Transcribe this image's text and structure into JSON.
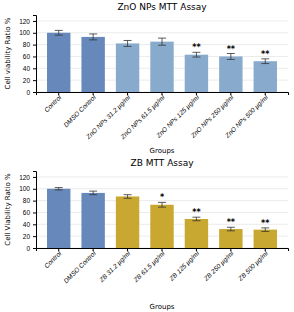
{
  "chart_data": [
    {
      "type": "bar",
      "title": "ZnO  NPs MTT Assay",
      "xlabel": "Groups",
      "ylabel": "Cell viability Ratio %",
      "categories": [
        "Control",
        "DMSO Control",
        "ZnO NPs 31.2 µg/ml",
        "ZnO NPs 61.5 µg/ml",
        "ZnO NPs 125 µg/ml",
        "ZnO NPs 250 µg/ml",
        "ZnO NPs 500 µg/ml"
      ],
      "values": [
        100,
        93,
        82,
        85,
        63,
        60,
        52
      ],
      "errors": [
        4,
        5,
        5,
        6,
        4,
        5,
        4
      ],
      "colors": [
        "#6688bb",
        "#6688bb",
        "#88aacc",
        "#88aacc",
        "#88aacc",
        "#88aacc",
        "#88aacc"
      ],
      "annotations": [
        {
          "category": "ZnO NPs 125 µg/ml",
          "text": "**"
        },
        {
          "category": "ZnO NPs 250 µg/ml",
          "text": "**"
        },
        {
          "category": "ZnO NPs 500 µg/ml",
          "text": "**"
        }
      ],
      "ylim": [
        0,
        130
      ],
      "yticks": [
        0,
        20,
        40,
        60,
        80,
        100,
        120
      ],
      "grid": true
    },
    {
      "type": "bar",
      "title": "ZB  MTT Assay",
      "xlabel": "Groups",
      "ylabel": "Cell Viability Ratio %",
      "categories": [
        "Control",
        "DMSO Control",
        "ZB 31.2 µg/ml",
        "ZB 61.5 µg/ml",
        "ZB 125 µg/ml",
        "ZB 250 µg/ml",
        "ZB 500 µg/ml"
      ],
      "values": [
        100,
        93,
        87,
        73,
        49,
        32,
        31
      ],
      "errors": [
        2,
        3,
        3,
        4,
        3,
        3,
        3
      ],
      "colors": [
        "#6688bb",
        "#6688bb",
        "#c8a830",
        "#c8a830",
        "#c8a830",
        "#c8a830",
        "#c8a830"
      ],
      "annotations": [
        {
          "category": "ZB 61.5 µg/ml",
          "text": "*"
        },
        {
          "category": "ZB 125 µg/ml",
          "text": "**"
        },
        {
          "category": "ZB 250 µg/ml",
          "text": "**"
        },
        {
          "category": "ZB 500 µg/ml",
          "text": "**"
        }
      ],
      "ylim": [
        0,
        130
      ],
      "yticks": [
        0,
        20,
        40,
        60,
        80,
        100,
        120
      ],
      "grid": true
    }
  ]
}
